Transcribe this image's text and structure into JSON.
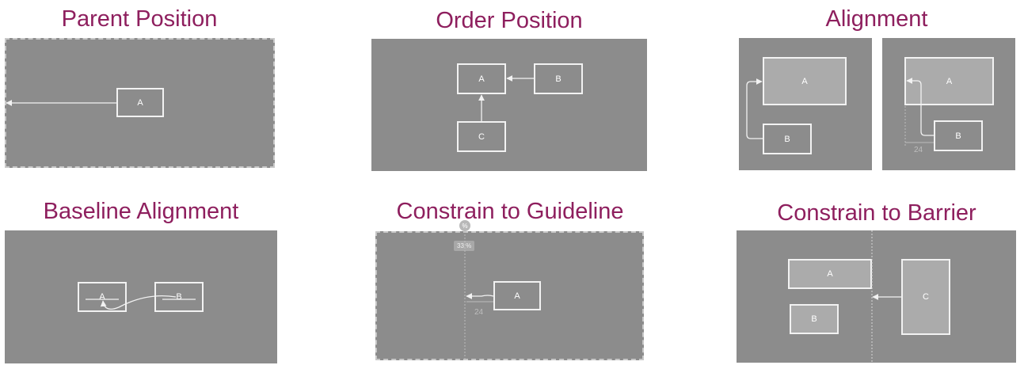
{
  "colors": {
    "title": "#8e1f5e",
    "panel": "#8c8c8c",
    "line": "#f2f2f2",
    "box_filled": "#ababab"
  },
  "panels": {
    "parent_position": {
      "title": "Parent Position",
      "box_a": "A"
    },
    "order_position": {
      "title": "Order Position",
      "box_a": "A",
      "box_b": "B",
      "box_c": "C"
    },
    "alignment": {
      "title": "Alignment",
      "left": {
        "box_a": "A",
        "box_b": "B"
      },
      "right": {
        "box_a": "A",
        "box_b": "B",
        "margin": "24"
      }
    },
    "baseline_alignment": {
      "title": "Baseline Alignment",
      "box_a": "A",
      "box_b": "B"
    },
    "constrain_to_guideline": {
      "title": "Constrain to Guideline",
      "handle": "%",
      "percent": "33 %",
      "box_a": "A",
      "margin": "24"
    },
    "constrain_to_barrier": {
      "title": "Constrain to Barrier",
      "box_a": "A",
      "box_b": "B",
      "box_c": "C"
    }
  }
}
